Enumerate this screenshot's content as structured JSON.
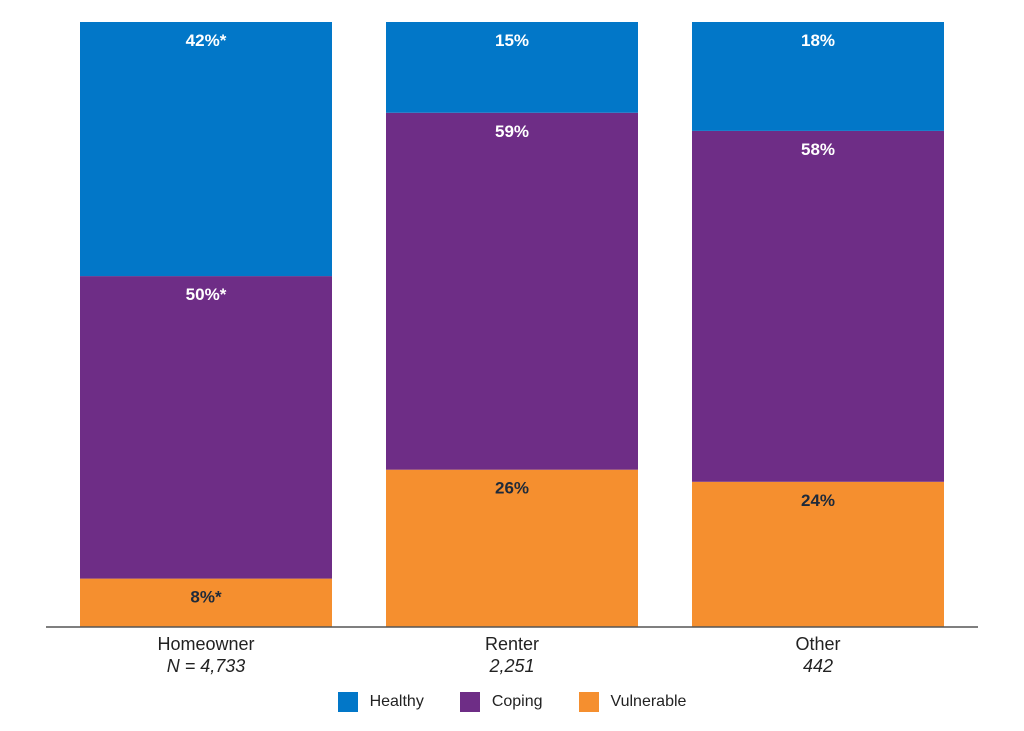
{
  "chart_data": {
    "type": "bar",
    "stacked": true,
    "categories": [
      "Homeowner",
      "Renter",
      "Other"
    ],
    "sample_sizes": [
      "N = 4,733",
      "2,251",
      "442"
    ],
    "ylim": [
      0,
      100
    ],
    "grid": false,
    "legend_position": "bottom",
    "series": [
      {
        "name": "Vulnerable",
        "color": "#f58f2f",
        "values": [
          8,
          26,
          24
        ],
        "labels": [
          "8%*",
          "26%",
          "24%"
        ],
        "label_color": "#1e2a3a"
      },
      {
        "name": "Coping",
        "color": "#6e2d86",
        "values": [
          50,
          59,
          58
        ],
        "labels": [
          "50%*",
          "59%",
          "58%"
        ],
        "label_color": "#ffffff"
      },
      {
        "name": "Healthy",
        "color": "#0277c8",
        "values": [
          42,
          15,
          18
        ],
        "labels": [
          "42%*",
          "15%",
          "18%"
        ],
        "label_color": "#ffffff"
      }
    ],
    "legend": [
      {
        "name": "Healthy",
        "color": "#0277c8"
      },
      {
        "name": "Coping",
        "color": "#6e2d86"
      },
      {
        "name": "Vulnerable",
        "color": "#f58f2f"
      }
    ]
  }
}
